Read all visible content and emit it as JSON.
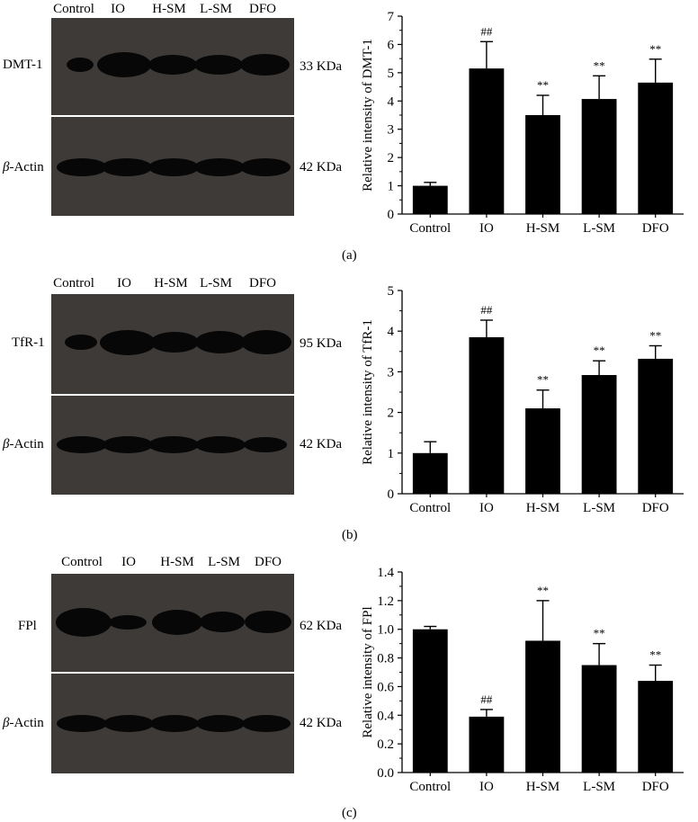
{
  "panels": [
    {
      "id": "a",
      "panel_label": "(a)",
      "lanes": [
        "Control",
        "IO",
        "H-SM",
        "L-SM",
        "DFO"
      ],
      "target_name": "DMT-1",
      "target_kda": "33 KDa",
      "actin_prefix": "β",
      "actin_suffix": "-Actin",
      "actin_kda": "42 KDa",
      "target_band_intensity": [
        0.3,
        1.0,
        0.75,
        0.85,
        0.9
      ]
    },
    {
      "id": "b",
      "panel_label": "(b)",
      "lanes": [
        "Control",
        "IO",
        "H-SM",
        "L-SM",
        "DFO"
      ],
      "target_name": "TfR-1",
      "target_kda": "95 KDa",
      "actin_prefix": "β",
      "actin_suffix": "-Actin",
      "actin_kda": "42 KDa",
      "target_band_intensity": [
        0.45,
        1.0,
        0.8,
        0.9,
        0.95
      ]
    },
    {
      "id": "c",
      "panel_label": "(c)",
      "lanes": [
        "Control",
        "IO",
        "H-SM",
        "L-SM",
        "DFO"
      ],
      "target_name": "FPl",
      "target_kda": "62 KDa",
      "actin_prefix": "β",
      "actin_suffix": "-Actin",
      "actin_kda": "42 KDa",
      "target_band_intensity": [
        1.0,
        0.55,
        0.95,
        0.85,
        0.85
      ]
    }
  ],
  "chart_data": [
    {
      "type": "bar",
      "categories": [
        "Control",
        "IO",
        "H-SM",
        "L-SM",
        "DFO"
      ],
      "values": [
        1.0,
        5.15,
        3.5,
        4.07,
        4.65
      ],
      "errors": [
        0.12,
        0.95,
        0.7,
        0.82,
        0.83
      ],
      "annotations": [
        "",
        "##",
        "**",
        "**",
        "**"
      ],
      "ylabel": "Relative intensity of DMT-1",
      "ylim": [
        0,
        7
      ],
      "yticks": [
        0,
        1,
        2,
        3,
        4,
        5,
        6,
        7
      ],
      "ytick_labels": [
        "0",
        "1",
        "2",
        "3",
        "4",
        "5",
        "6",
        "7"
      ],
      "bar_color": "#000000"
    },
    {
      "type": "bar",
      "categories": [
        "Control",
        "IO",
        "H-SM",
        "L-SM",
        "DFO"
      ],
      "values": [
        1.0,
        3.85,
        2.1,
        2.92,
        3.32
      ],
      "errors": [
        0.28,
        0.42,
        0.45,
        0.35,
        0.32
      ],
      "annotations": [
        "",
        "##",
        "**",
        "**",
        "**"
      ],
      "ylabel": "Relative intensity of TfR-1",
      "ylim": [
        0,
        5
      ],
      "yticks": [
        0,
        1,
        2,
        3,
        4,
        5
      ],
      "ytick_labels": [
        "0",
        "1",
        "2",
        "3",
        "4",
        "5"
      ],
      "bar_color": "#000000"
    },
    {
      "type": "bar",
      "categories": [
        "Control",
        "IO",
        "H-SM",
        "L-SM",
        "DFO"
      ],
      "values": [
        1.0,
        0.39,
        0.92,
        0.75,
        0.64
      ],
      "errors": [
        0.02,
        0.05,
        0.28,
        0.15,
        0.11
      ],
      "annotations": [
        "",
        "##",
        "**",
        "**",
        "**"
      ],
      "ylabel": "Relative intensity of FPl",
      "ylim": [
        0,
        1.4
      ],
      "yticks": [
        0,
        0.2,
        0.4,
        0.6,
        0.8,
        1.0,
        1.2,
        1.4
      ],
      "ytick_labels": [
        "0.0",
        "0.2",
        "0.4",
        "0.6",
        "0.8",
        "1.0",
        "1.2",
        "1.4"
      ],
      "bar_color": "#000000"
    }
  ]
}
